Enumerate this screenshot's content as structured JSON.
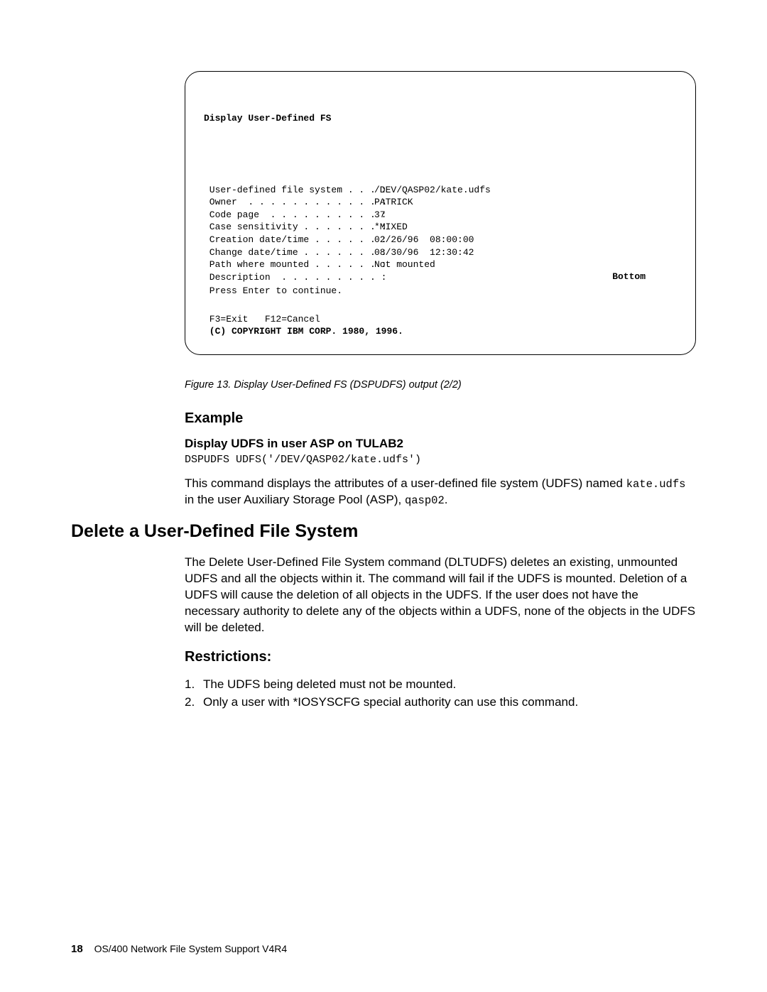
{
  "terminal": {
    "title": "Display User-Defined FS",
    "rows": [
      {
        "label": " User-defined file system . . . :",
        "value": "/DEV/QASP02/kate.udfs"
      },
      {
        "label": "",
        "value": ""
      },
      {
        "label": " Owner  . . . . . . . . . . . . :",
        "value": "PATRICK"
      },
      {
        "label": " Code page  . . . . . . . . . . :",
        "value": "37"
      },
      {
        "label": " Case sensitivity . . . . . . . :",
        "value": "*MIXED"
      },
      {
        "label": " Creation date/time . . . . . . :",
        "value": "02/26/96  08:00:00"
      },
      {
        "label": " Change date/time . . . . . . . :",
        "value": "08/30/96  12:30:42"
      },
      {
        "label": " Path where mounted . . . . . . :",
        "value": "Not mounted"
      },
      {
        "label": "",
        "value": ""
      },
      {
        "label": " Description  . . . . . . . . . :",
        "value": ""
      }
    ],
    "bottom": "Bottom",
    "press": " Press Enter to continue.",
    "fkeys": " F3=Exit   F12=Cancel",
    "copyright": " (C) COPYRIGHT IBM CORP. 1980, 1996."
  },
  "caption": "Figure 13. Display User-Defined FS (DSPUDFS) output (2/2)",
  "example": {
    "heading": "Example",
    "subheading": "Display UDFS in user ASP on TULAB2",
    "code": "DSPUDFS UDFS('/DEV/QASP02/kate.udfs')",
    "para_pre": "This command displays the attributes of a user-defined file system (UDFS) named ",
    "para_code1": "kate.udfs",
    "para_mid": " in the user Auxiliary Storage Pool (ASP), ",
    "para_code2": "qasp02",
    "para_end": "."
  },
  "section": {
    "heading": "Delete a User-Defined File System",
    "para": "The Delete User-Defined File System command (DLTUDFS) deletes an existing, unmounted UDFS and all the objects within it. The command will fail if the UDFS is mounted. Deletion of a UDFS will cause the deletion of all objects in the UDFS. If the user does not have the necessary authority to delete any of the objects within a UDFS, none of the objects in the UDFS will be deleted."
  },
  "restrictions": {
    "heading": "Restrictions:",
    "items": [
      "The UDFS being deleted must not be mounted.",
      "Only a user with *IOSYSCFG special authority can use this command."
    ]
  },
  "footer": {
    "page": "18",
    "title": "OS/400 Network File System Support V4R4"
  }
}
